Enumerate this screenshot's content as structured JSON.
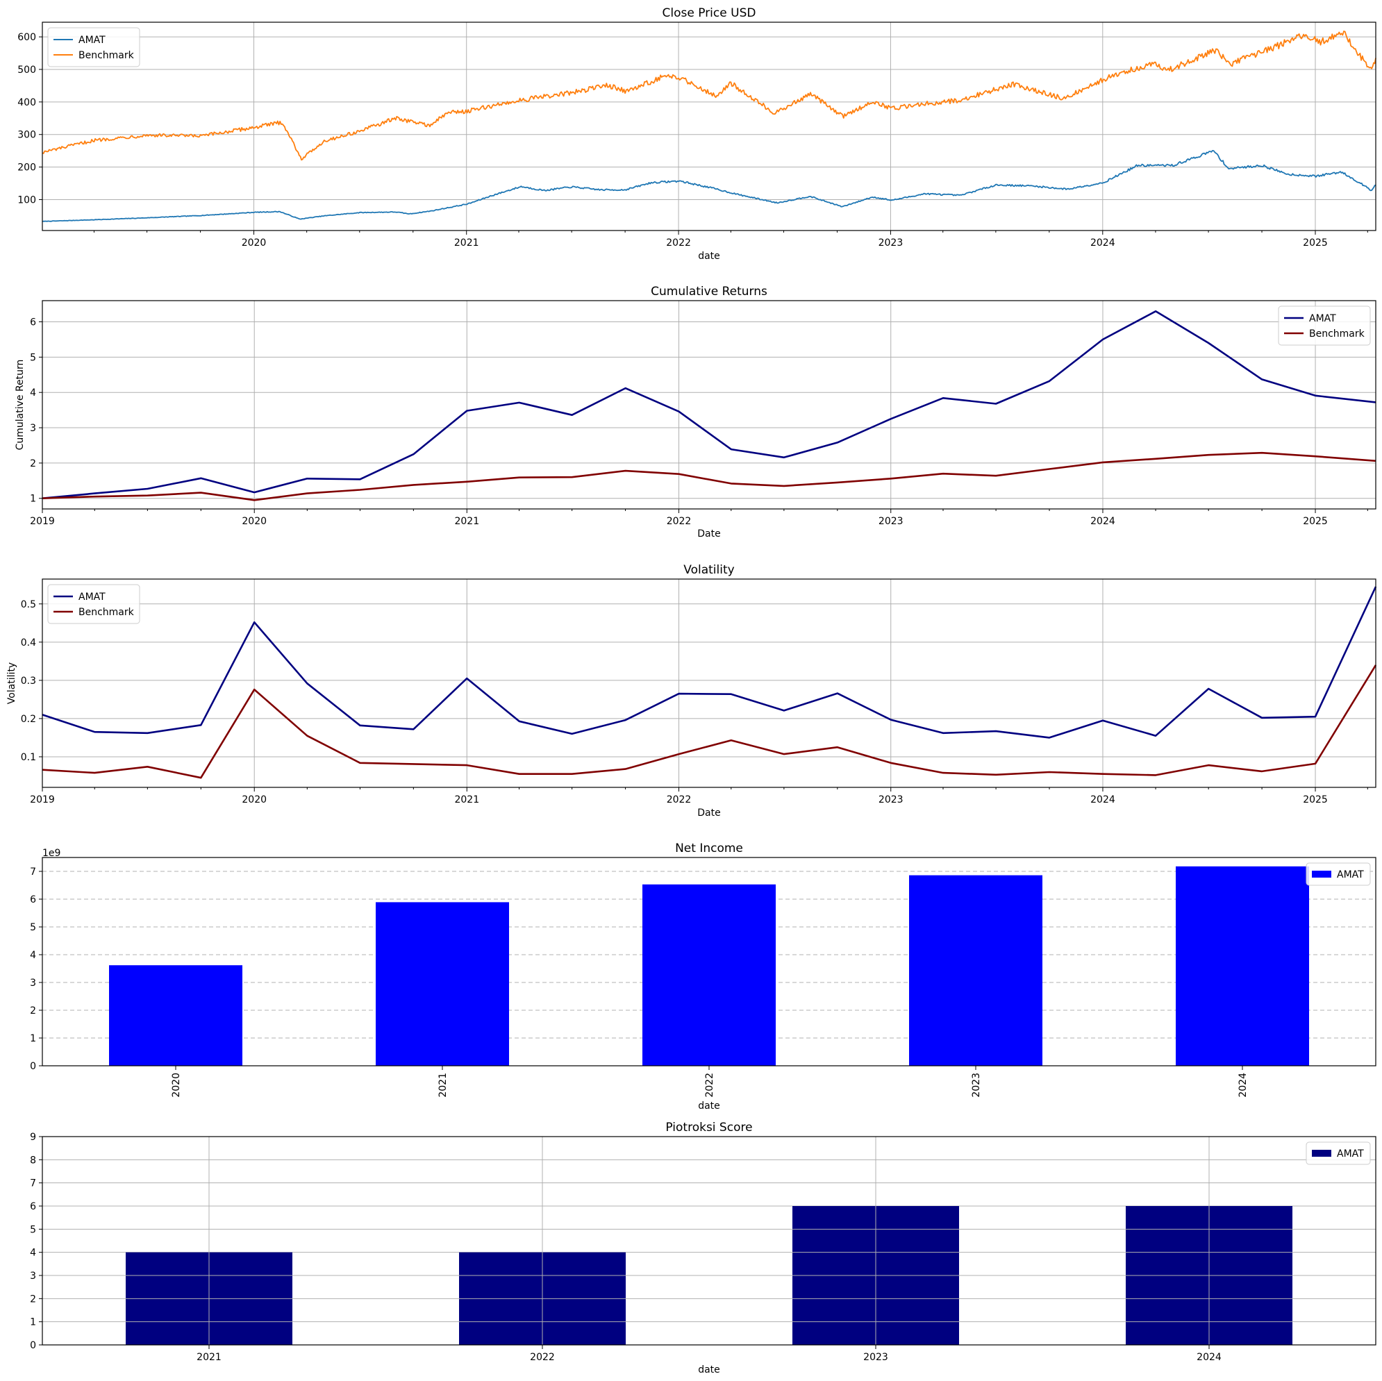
{
  "chart_data": [
    {
      "id": "close-price",
      "type": "line",
      "title": "Close Price USD",
      "xlabel": "date",
      "ylabel": "",
      "x_range": [
        "2019-01-02",
        "2025-04-15"
      ],
      "ylim": [
        5,
        645
      ],
      "x_ticks": [
        "2020",
        "2021",
        "2022",
        "2023",
        "2024",
        "2025"
      ],
      "y_ticks": [
        100,
        200,
        300,
        400,
        500,
        600
      ],
      "grid": true,
      "legend": "top-left",
      "series": [
        {
          "name": "AMAT",
          "color": "#1f77b4",
          "points": [
            [
              "2019-01-02",
              33
            ],
            [
              "2019-04-01",
              38
            ],
            [
              "2019-07-01",
              44
            ],
            [
              "2019-10-01",
              51
            ],
            [
              "2020-01-02",
              61
            ],
            [
              "2020-02-15",
              63
            ],
            [
              "2020-03-20",
              40
            ],
            [
              "2020-05-01",
              50
            ],
            [
              "2020-07-01",
              60
            ],
            [
              "2020-09-01",
              62
            ],
            [
              "2020-09-25",
              56
            ],
            [
              "2020-11-01",
              65
            ],
            [
              "2021-01-04",
              87
            ],
            [
              "2021-02-15",
              113
            ],
            [
              "2021-04-05",
              140
            ],
            [
              "2021-05-15",
              128
            ],
            [
              "2021-07-01",
              139
            ],
            [
              "2021-08-20",
              130
            ],
            [
              "2021-10-01",
              130
            ],
            [
              "2021-11-15",
              152
            ],
            [
              "2022-01-03",
              157
            ],
            [
              "2022-03-01",
              135
            ],
            [
              "2022-04-15",
              115
            ],
            [
              "2022-06-20",
              90
            ],
            [
              "2022-08-15",
              110
            ],
            [
              "2022-10-10",
              78
            ],
            [
              "2022-12-01",
              108
            ],
            [
              "2023-01-03",
              98
            ],
            [
              "2023-03-01",
              118
            ],
            [
              "2023-05-01",
              113
            ],
            [
              "2023-07-01",
              145
            ],
            [
              "2023-09-01",
              142
            ],
            [
              "2023-11-01",
              132
            ],
            [
              "2024-01-02",
              152
            ],
            [
              "2024-03-01",
              205
            ],
            [
              "2024-05-01",
              205
            ],
            [
              "2024-07-10",
              250
            ],
            [
              "2024-08-05",
              195
            ],
            [
              "2024-10-01",
              205
            ],
            [
              "2024-11-15",
              178
            ],
            [
              "2025-01-02",
              172
            ],
            [
              "2025-02-15",
              185
            ],
            [
              "2025-03-20",
              150
            ],
            [
              "2025-04-08",
              128
            ],
            [
              "2025-04-15",
              145
            ]
          ]
        },
        {
          "name": "Benchmark",
          "color": "#ff7f0e",
          "points": [
            [
              "2019-01-02",
              245
            ],
            [
              "2019-04-01",
              282
            ],
            [
              "2019-07-01",
              298
            ],
            [
              "2019-10-01",
              295
            ],
            [
              "2020-01-02",
              322
            ],
            [
              "2020-02-19",
              338
            ],
            [
              "2020-03-23",
              225
            ],
            [
              "2020-05-01",
              280
            ],
            [
              "2020-07-01",
              310
            ],
            [
              "2020-09-01",
              350
            ],
            [
              "2020-10-30",
              328
            ],
            [
              "2020-12-01",
              368
            ],
            [
              "2021-01-04",
              372
            ],
            [
              "2021-04-01",
              405
            ],
            [
              "2021-07-01",
              428
            ],
            [
              "2021-09-01",
              452
            ],
            [
              "2021-10-05",
              432
            ],
            [
              "2021-12-01",
              475
            ],
            [
              "2022-01-03",
              476
            ],
            [
              "2022-03-08",
              418
            ],
            [
              "2022-04-01",
              458
            ],
            [
              "2022-06-16",
              365
            ],
            [
              "2022-08-16",
              425
            ],
            [
              "2022-10-12",
              355
            ],
            [
              "2022-12-01",
              402
            ],
            [
              "2023-01-03",
              380
            ],
            [
              "2023-03-01",
              395
            ],
            [
              "2023-05-01",
              405
            ],
            [
              "2023-07-31",
              455
            ],
            [
              "2023-10-27",
              410
            ],
            [
              "2024-01-02",
              470
            ],
            [
              "2024-03-28",
              520
            ],
            [
              "2024-04-19",
              495
            ],
            [
              "2024-07-16",
              560
            ],
            [
              "2024-08-05",
              515
            ],
            [
              "2024-11-01",
              575
            ],
            [
              "2024-12-06",
              605
            ],
            [
              "2025-01-10",
              585
            ],
            [
              "2025-02-19",
              612
            ],
            [
              "2025-03-13",
              555
            ],
            [
              "2025-04-08",
              495
            ],
            [
              "2025-04-15",
              535
            ]
          ]
        }
      ]
    },
    {
      "id": "cumulative-returns",
      "type": "line",
      "title": "Cumulative Returns",
      "xlabel": "Date",
      "ylabel": "Cumulative Return",
      "x_range": [
        "2019-01-01",
        "2025-04-15"
      ],
      "ylim": [
        0.7,
        6.6
      ],
      "x_ticks": [
        "2019",
        "2020",
        "2021",
        "2022",
        "2023",
        "2024",
        "2025"
      ],
      "y_ticks": [
        1,
        2,
        3,
        4,
        5,
        6
      ],
      "grid": true,
      "legend": "top-right",
      "series": [
        {
          "name": "AMAT",
          "color": "#000080",
          "points": [
            [
              "2019-01-01",
              1.0
            ],
            [
              "2019-04-01",
              1.14
            ],
            [
              "2019-07-01",
              1.27
            ],
            [
              "2019-10-01",
              1.57
            ],
            [
              "2020-01-01",
              1.17
            ],
            [
              "2020-04-01",
              1.56
            ],
            [
              "2020-07-01",
              1.54
            ],
            [
              "2020-10-01",
              2.25
            ],
            [
              "2021-01-01",
              3.48
            ],
            [
              "2021-04-01",
              3.71
            ],
            [
              "2021-07-01",
              3.36
            ],
            [
              "2021-10-01",
              4.12
            ],
            [
              "2022-01-01",
              3.46
            ],
            [
              "2022-04-01",
              2.39
            ],
            [
              "2022-07-01",
              2.16
            ],
            [
              "2022-10-01",
              2.58
            ],
            [
              "2023-01-01",
              3.25
            ],
            [
              "2023-04-01",
              3.84
            ],
            [
              "2023-07-01",
              3.68
            ],
            [
              "2023-10-01",
              4.32
            ],
            [
              "2024-01-01",
              5.5
            ],
            [
              "2024-04-01",
              6.3
            ],
            [
              "2024-07-01",
              5.4
            ],
            [
              "2024-10-01",
              4.37
            ],
            [
              "2025-01-01",
              3.91
            ],
            [
              "2025-04-15",
              3.72
            ]
          ]
        },
        {
          "name": "Benchmark",
          "color": "#800000",
          "points": [
            [
              "2019-01-01",
              1.0
            ],
            [
              "2019-04-01",
              1.05
            ],
            [
              "2019-07-01",
              1.08
            ],
            [
              "2019-10-01",
              1.16
            ],
            [
              "2020-01-01",
              0.95
            ],
            [
              "2020-04-01",
              1.14
            ],
            [
              "2020-07-01",
              1.24
            ],
            [
              "2020-10-01",
              1.38
            ],
            [
              "2021-01-01",
              1.47
            ],
            [
              "2021-04-01",
              1.59
            ],
            [
              "2021-07-01",
              1.6
            ],
            [
              "2021-10-01",
              1.78
            ],
            [
              "2022-01-01",
              1.69
            ],
            [
              "2022-04-01",
              1.42
            ],
            [
              "2022-07-01",
              1.35
            ],
            [
              "2022-10-01",
              1.45
            ],
            [
              "2023-01-01",
              1.56
            ],
            [
              "2023-04-01",
              1.7
            ],
            [
              "2023-07-01",
              1.64
            ],
            [
              "2023-10-01",
              1.83
            ],
            [
              "2024-01-01",
              2.02
            ],
            [
              "2024-04-01",
              2.12
            ],
            [
              "2024-07-01",
              2.23
            ],
            [
              "2024-10-01",
              2.29
            ],
            [
              "2025-01-01",
              2.19
            ],
            [
              "2025-04-15",
              2.06
            ]
          ]
        }
      ]
    },
    {
      "id": "volatility",
      "type": "line",
      "title": "Volatility",
      "xlabel": "Date",
      "ylabel": "Volatility",
      "x_range": [
        "2019-01-01",
        "2025-04-15"
      ],
      "ylim": [
        0.02,
        0.565
      ],
      "x_ticks": [
        "2019",
        "2020",
        "2021",
        "2022",
        "2023",
        "2024",
        "2025"
      ],
      "y_ticks": [
        0.1,
        0.2,
        0.3,
        0.4,
        0.5
      ],
      "grid": true,
      "legend": "top-left",
      "series": [
        {
          "name": "AMAT",
          "color": "#000080",
          "points": [
            [
              "2019-01-01",
              0.21
            ],
            [
              "2019-04-01",
              0.165
            ],
            [
              "2019-07-01",
              0.162
            ],
            [
              "2019-10-01",
              0.183
            ],
            [
              "2020-01-01",
              0.452
            ],
            [
              "2020-04-01",
              0.292
            ],
            [
              "2020-07-01",
              0.182
            ],
            [
              "2020-10-01",
              0.172
            ],
            [
              "2021-01-01",
              0.305
            ],
            [
              "2021-04-01",
              0.193
            ],
            [
              "2021-07-01",
              0.16
            ],
            [
              "2021-10-01",
              0.196
            ],
            [
              "2022-01-01",
              0.265
            ],
            [
              "2022-04-01",
              0.264
            ],
            [
              "2022-07-01",
              0.221
            ],
            [
              "2022-10-01",
              0.266
            ],
            [
              "2023-01-01",
              0.197
            ],
            [
              "2023-04-01",
              0.162
            ],
            [
              "2023-07-01",
              0.167
            ],
            [
              "2023-10-01",
              0.15
            ],
            [
              "2024-01-01",
              0.195
            ],
            [
              "2024-04-01",
              0.155
            ],
            [
              "2024-07-01",
              0.278
            ],
            [
              "2024-10-01",
              0.202
            ],
            [
              "2025-01-01",
              0.205
            ],
            [
              "2025-04-15",
              0.545
            ]
          ]
        },
        {
          "name": "Benchmark",
          "color": "#800000",
          "points": [
            [
              "2019-01-01",
              0.066
            ],
            [
              "2019-04-01",
              0.058
            ],
            [
              "2019-07-01",
              0.074
            ],
            [
              "2019-10-01",
              0.045
            ],
            [
              "2020-01-01",
              0.276
            ],
            [
              "2020-04-01",
              0.155
            ],
            [
              "2020-07-01",
              0.084
            ],
            [
              "2020-10-01",
              0.081
            ],
            [
              "2021-01-01",
              0.078
            ],
            [
              "2021-04-01",
              0.055
            ],
            [
              "2021-07-01",
              0.055
            ],
            [
              "2021-10-01",
              0.068
            ],
            [
              "2022-01-01",
              0.107
            ],
            [
              "2022-04-01",
              0.143
            ],
            [
              "2022-07-01",
              0.107
            ],
            [
              "2022-10-01",
              0.125
            ],
            [
              "2023-01-01",
              0.084
            ],
            [
              "2023-04-01",
              0.058
            ],
            [
              "2023-07-01",
              0.053
            ],
            [
              "2023-10-01",
              0.06
            ],
            [
              "2024-01-01",
              0.055
            ],
            [
              "2024-04-01",
              0.052
            ],
            [
              "2024-07-01",
              0.078
            ],
            [
              "2024-10-01",
              0.062
            ],
            [
              "2025-01-01",
              0.082
            ],
            [
              "2025-04-15",
              0.34
            ]
          ]
        }
      ]
    },
    {
      "id": "net-income",
      "type": "bar",
      "title": "Net Income",
      "xlabel": "date",
      "ylabel": "",
      "offset_label": "1e9",
      "categories": [
        "2020",
        "2021",
        "2022",
        "2023",
        "2024"
      ],
      "tick_rotation": "vertical",
      "ylim": [
        0,
        7.5
      ],
      "y_ticks": [
        0,
        1,
        2,
        3,
        4,
        5,
        6,
        7
      ],
      "grid": "y-dashed",
      "legend": "top-right",
      "series": [
        {
          "name": "AMAT",
          "color": "#0000ff",
          "values": [
            3.62,
            5.89,
            6.53,
            6.86,
            7.18
          ]
        }
      ]
    },
    {
      "id": "piotroski-score",
      "type": "bar",
      "title": "Piotroksi Score",
      "xlabel": "date",
      "ylabel": "",
      "categories": [
        "2021",
        "2022",
        "2023",
        "2024"
      ],
      "ylim": [
        0,
        9
      ],
      "y_ticks": [
        0,
        1,
        2,
        3,
        4,
        5,
        6,
        7,
        8,
        9
      ],
      "grid": true,
      "legend": "top-right",
      "series": [
        {
          "name": "AMAT",
          "color": "#000080",
          "values": [
            4,
            4,
            6,
            6
          ]
        }
      ]
    }
  ]
}
